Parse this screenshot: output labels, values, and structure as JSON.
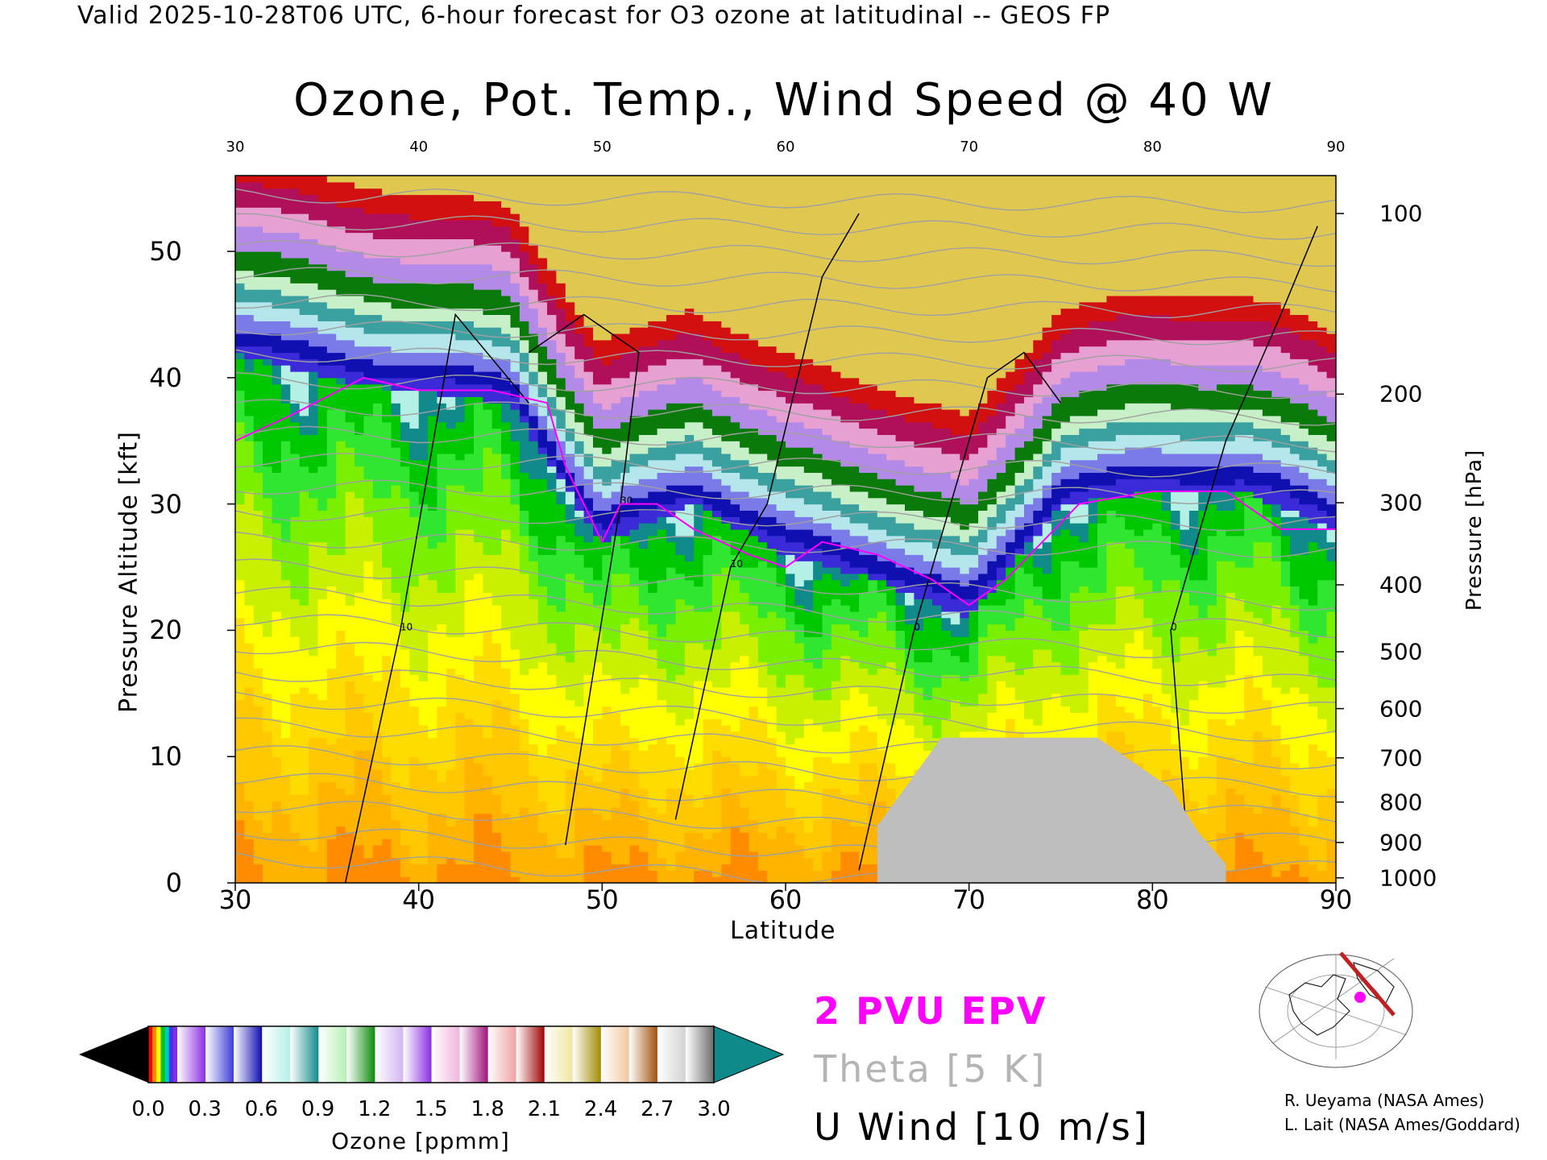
{
  "header": {
    "valid_line": "Valid 2025-10-28T06 UTC, 6-hour forecast for O3 ozone at latitudinal -- GEOS FP"
  },
  "chart_data": {
    "type": "heatmap",
    "title": "Ozone, Pot. Temp., Wind Speed @ 40 W",
    "xlabel": "Latitude",
    "ylabel": "Pressure Altitude [kft]",
    "y2label": "Pressure [hPa]",
    "xlim": [
      30,
      90
    ],
    "ylim": [
      0,
      56
    ],
    "x_ticks": [
      "30",
      "40",
      "50",
      "60",
      "70",
      "80",
      "90"
    ],
    "top_x_ticks": [
      "30",
      "40",
      "50",
      "60",
      "70",
      "80",
      "90"
    ],
    "y_ticks": [
      "0",
      "10",
      "20",
      "30",
      "40",
      "50"
    ],
    "pressure_ticks": [
      {
        "label": "100",
        "alt": 53.0
      },
      {
        "label": "200",
        "alt": 38.7
      },
      {
        "label": "300",
        "alt": 30.1
      },
      {
        "label": "400",
        "alt": 23.6
      },
      {
        "label": "500",
        "alt": 18.3
      },
      {
        "label": "600",
        "alt": 13.8
      },
      {
        "label": "700",
        "alt": 9.9
      },
      {
        "label": "800",
        "alt": 6.4
      },
      {
        "label": "900",
        "alt": 3.2
      },
      {
        "label": "1000",
        "alt": 0.4
      }
    ],
    "ozone_levels_ppmm": [
      {
        "lat": 30,
        "tropo_top": 42,
        "ozone_surface": 2.0
      },
      {
        "lat": 35,
        "tropo_top": 40,
        "ozone_surface": 2.1
      },
      {
        "lat": 40,
        "tropo_top": 39,
        "ozone_surface": 2.1
      },
      {
        "lat": 45,
        "tropo_top": 38,
        "ozone_surface": 2.3
      },
      {
        "lat": 50,
        "tropo_top": 27,
        "ozone_surface": 2.4
      },
      {
        "lat": 55,
        "tropo_top": 30,
        "ozone_surface": 2.3
      },
      {
        "lat": 60,
        "tropo_top": 26,
        "ozone_surface": 2.3
      },
      {
        "lat": 65,
        "tropo_top": 24,
        "ozone_surface": 2.2
      },
      {
        "lat": 70,
        "tropo_top": 21,
        "ozone_surface": 2.0
      },
      {
        "lat": 75,
        "tropo_top": 30,
        "ozone_surface": 1.9
      },
      {
        "lat": 80,
        "tropo_top": 31,
        "ozone_surface": 1.9
      },
      {
        "lat": 85,
        "tropo_top": 31,
        "ozone_surface": 1.8
      },
      {
        "lat": 90,
        "tropo_top": 28,
        "ozone_surface": 1.8
      }
    ],
    "pv2_line": [
      [
        30,
        35
      ],
      [
        33,
        37
      ],
      [
        37,
        40
      ],
      [
        40,
        39
      ],
      [
        44,
        39
      ],
      [
        47,
        38
      ],
      [
        48,
        33
      ],
      [
        50,
        27
      ],
      [
        51,
        30
      ],
      [
        53,
        30
      ],
      [
        55,
        28
      ],
      [
        58,
        26
      ],
      [
        60,
        25
      ],
      [
        62,
        27
      ],
      [
        65,
        26
      ],
      [
        68,
        24
      ],
      [
        70,
        22
      ],
      [
        72,
        24
      ],
      [
        74,
        27
      ],
      [
        76,
        30
      ],
      [
        80,
        31
      ],
      [
        84,
        31
      ],
      [
        87,
        28
      ],
      [
        90,
        28
      ]
    ],
    "u_wind_contours": [
      {
        "label": "10",
        "points": [
          [
            36,
            0
          ],
          [
            39,
            20
          ],
          [
            42,
            45
          ],
          [
            46,
            38
          ]
        ]
      },
      {
        "label": "30",
        "points": [
          [
            48,
            3
          ],
          [
            51,
            30
          ],
          [
            52,
            42
          ],
          [
            49,
            45
          ],
          [
            46,
            42
          ]
        ]
      },
      {
        "label": "10",
        "points": [
          [
            54,
            5
          ],
          [
            57,
            25
          ],
          [
            59,
            30
          ],
          [
            62,
            48
          ],
          [
            64,
            53
          ]
        ]
      },
      {
        "label": "0",
        "points": [
          [
            64,
            1
          ],
          [
            67,
            20
          ],
          [
            71,
            40
          ],
          [
            73,
            42
          ],
          [
            75,
            38
          ]
        ]
      },
      {
        "label": "0",
        "points": [
          [
            82,
            1
          ],
          [
            81,
            20
          ],
          [
            84,
            35
          ],
          [
            87,
            45
          ],
          [
            89,
            52
          ]
        ]
      }
    ],
    "terrain": {
      "lat_range": [
        65,
        84
      ],
      "top_alt": 11.5
    },
    "colorbar": {
      "label": "Ozone [ppmm]",
      "ticks": [
        "0.0",
        "0.3",
        "0.6",
        "0.9",
        "1.2",
        "1.5",
        "1.8",
        "2.1",
        "2.4",
        "2.7",
        "3.0"
      ],
      "colors": [
        "#000000",
        "#8a2be2",
        "#3a3ad8",
        "#0a0ab0",
        "#b4f0e6",
        "#0f8a8a",
        "#b4f0b4",
        "#0a8a0a",
        "#d2b4f0",
        "#8a2be2",
        "#f0b4dc",
        "#a0107a",
        "#f0a0a0",
        "#a00000",
        "#f0e6a0",
        "#a08a00",
        "#f0c8a0",
        "#a0500a",
        "#d2d2d2",
        "#6a6a6a",
        "#0f8a8a"
      ]
    },
    "legend": {
      "pv": "2 PVU EPV",
      "theta": "Theta [5 K]",
      "uwind": "U Wind [10 m/s]"
    }
  },
  "credits": {
    "line1": "R. Ueyama (NASA Ames)",
    "line2": "L. Lait (NASA Ames/Goddard)"
  },
  "colors": {
    "pv_line": "#ff00ff",
    "theta_line": "#a0a0a0",
    "terrain": "#bebebe"
  }
}
